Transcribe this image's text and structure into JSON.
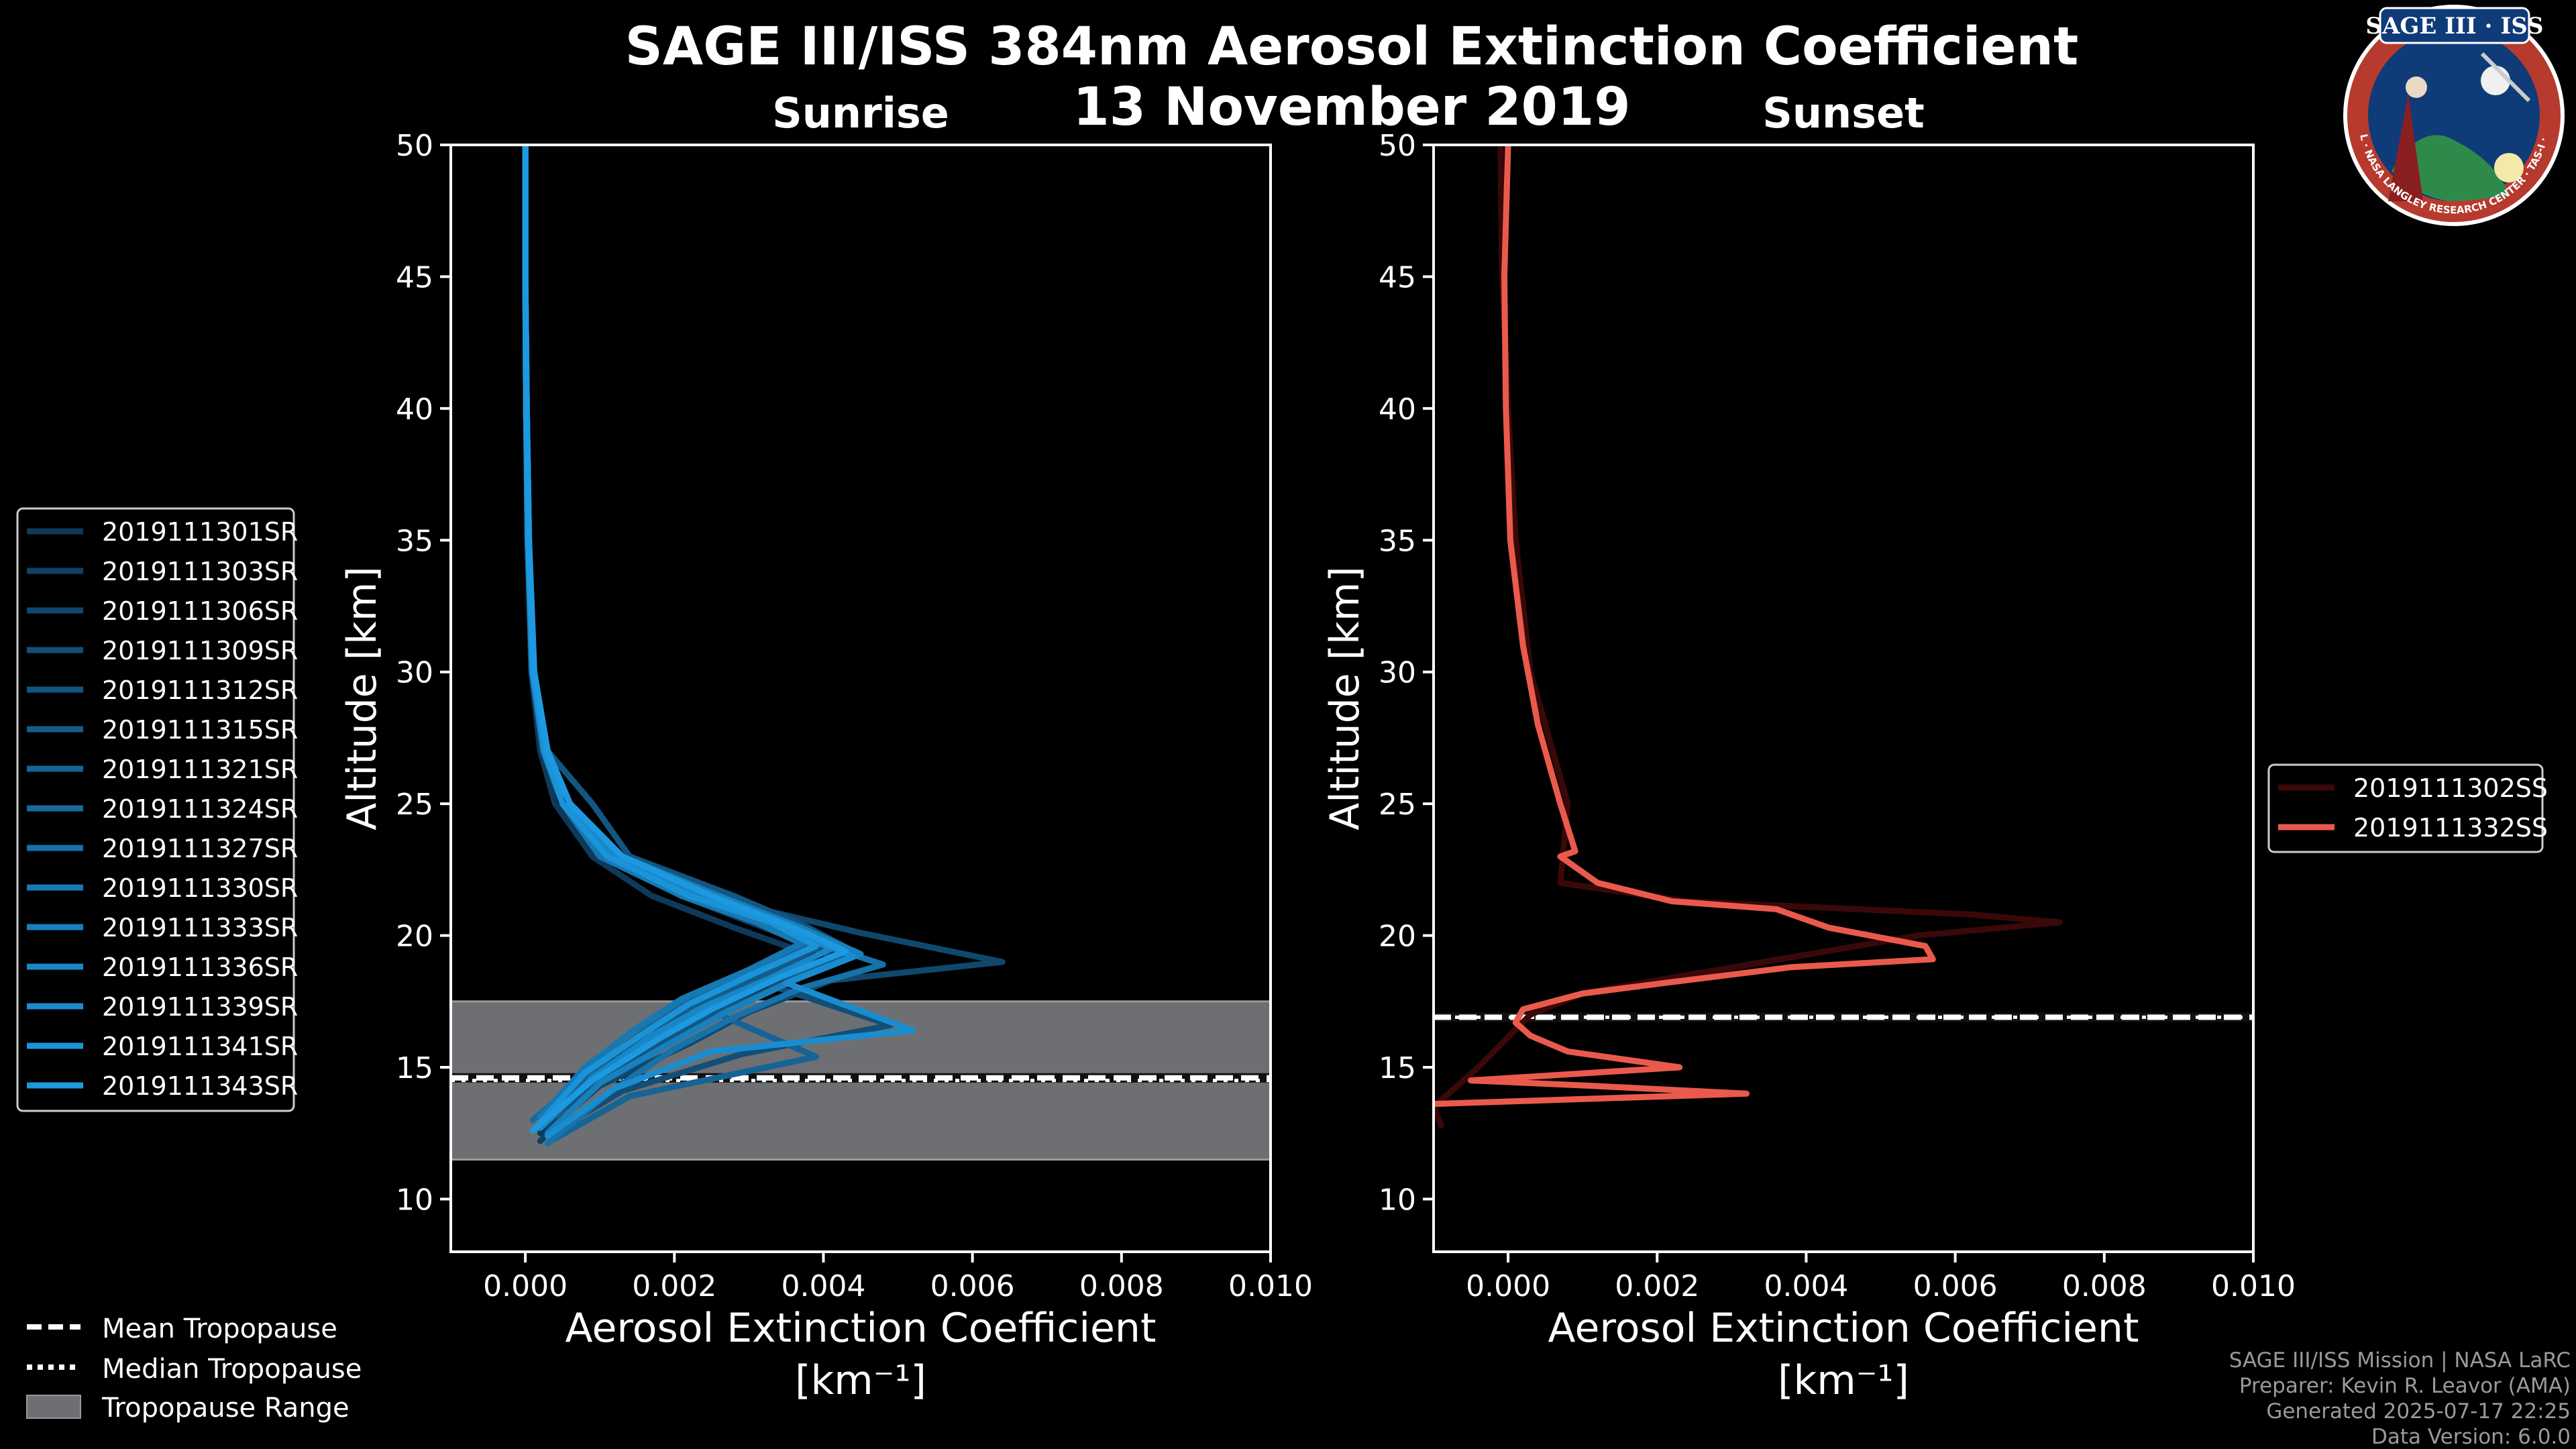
{
  "title_line1": "SAGE III/ISS 384nm Aerosol Extinction Coefficient",
  "title_line2": "13 November 2019",
  "logo": {
    "text_top": "SAGE III · ISS",
    "ring_text": "BALL · NASA LANGLEY RESEARCH CENTER · TAS-I · ESA"
  },
  "footer": {
    "line1": "SAGE III/ISS Mission | NASA LaRC",
    "line2": "Preparer: Kevin R. Leavor (AMA)",
    "line3": "Generated 2025-07-17 22:25",
    "line4": "Data Version: 6.0.0"
  },
  "bottom_legend": {
    "mean": "Mean Tropopause",
    "median": "Median Tropopause",
    "range": "Tropopause Range"
  },
  "colors": {
    "sunrise": "#1b8fd2",
    "sunset": "#ea5a4c",
    "tropopause_range": "#6d6f73"
  },
  "chart_data": [
    {
      "type": "line",
      "title": "Sunrise",
      "xlabel": "Aerosol Extinction Coefficient",
      "xlabel_units": "[km⁻¹]",
      "ylabel": "Altitude [km]",
      "xlim": [
        -0.001,
        0.01
      ],
      "ylim": [
        8,
        50
      ],
      "xticks": [
        0.0,
        0.002,
        0.004,
        0.006,
        0.008,
        0.01
      ],
      "xtick_labels": [
        "0.000",
        "0.002",
        "0.004",
        "0.006",
        "0.008",
        "0.010"
      ],
      "yticks": [
        10,
        15,
        20,
        25,
        30,
        35,
        40,
        45,
        50
      ],
      "tropopause": {
        "mean": 14.6,
        "median": 14.5,
        "range": [
          11.5,
          17.5
        ]
      },
      "series": [
        {
          "name": "2019111301SR",
          "color": "#0e3a5a",
          "x": [
            0.0,
            0.0,
            1e-05,
            3e-05,
            8e-05,
            0.0002,
            0.0004,
            0.0009,
            0.0017,
            0.0028,
            0.0037,
            0.0031,
            0.0022,
            0.0016,
            0.0008,
            0.0002
          ],
          "y": [
            50,
            45,
            40,
            35,
            30,
            27,
            25,
            23,
            21.5,
            20.3,
            19.4,
            18.4,
            17.2,
            16,
            14.5,
            12.5
          ]
        },
        {
          "name": "2019111303SR",
          "color": "#0f4163",
          "x": [
            0.0,
            0.0,
            1e-05,
            4e-05,
            0.0001,
            0.00025,
            0.0005,
            0.0011,
            0.0021,
            0.0033,
            0.0042,
            0.0034,
            0.0025,
            0.0018,
            0.0009,
            0.0002
          ],
          "y": [
            50,
            45,
            40,
            35,
            30,
            27,
            25,
            23,
            21.5,
            20.2,
            19.2,
            18.2,
            17,
            15.8,
            14.2,
            12.2
          ]
        },
        {
          "name": "2019111306SR",
          "color": "#10486d",
          "x": [
            0.0,
            0.0,
            2e-05,
            5e-05,
            0.00011,
            0.0003,
            0.0006,
            0.0012,
            0.0024,
            0.0045,
            0.0064,
            0.0041,
            0.003,
            0.0022,
            0.001,
            0.0003
          ],
          "y": [
            50,
            45,
            40,
            35,
            30,
            27,
            25,
            23,
            21.5,
            20.1,
            19.0,
            18.3,
            17.1,
            15.9,
            14.3,
            12.6
          ]
        },
        {
          "name": "2019111309SR",
          "color": "#114f77",
          "x": [
            0.0,
            0.0,
            1e-05,
            4e-05,
            0.0001,
            0.00027,
            0.0005,
            0.0012,
            0.0023,
            0.0034,
            0.0041,
            0.0033,
            0.0049,
            0.0029,
            0.0013,
            0.0003
          ],
          "y": [
            50,
            45,
            40,
            35,
            30,
            27,
            25,
            23,
            21.5,
            20.2,
            19.2,
            18.1,
            16.6,
            15.5,
            14.1,
            12.4
          ]
        },
        {
          "name": "2019111312SR",
          "color": "#125681",
          "x": [
            0.0,
            0.0,
            2e-05,
            5e-05,
            0.00012,
            0.0003,
            0.0009,
            0.0014,
            0.0028,
            0.0038,
            0.0044,
            0.0036,
            0.0027,
            0.0019,
            0.001,
            0.0002
          ],
          "y": [
            50,
            45,
            40,
            35,
            30,
            27,
            25,
            23,
            21.5,
            20.3,
            19.4,
            18.3,
            17.2,
            16.1,
            14.6,
            12.7
          ]
        },
        {
          "name": "2019111315SR",
          "color": "#135d8b",
          "x": [
            0.0,
            0.0,
            1e-05,
            3e-05,
            9e-05,
            0.00024,
            0.0005,
            0.0011,
            0.0022,
            0.0033,
            0.0039,
            0.0032,
            0.0023,
            0.0017,
            0.0008,
            0.0002
          ],
          "y": [
            50,
            45,
            40,
            35,
            30,
            27,
            25,
            23,
            21.5,
            20.4,
            19.5,
            18.5,
            17.3,
            16.2,
            14.7,
            12.8
          ]
        },
        {
          "name": "2019111321SR",
          "color": "#146495",
          "x": [
            0.0,
            0.0,
            2e-05,
            5e-05,
            0.00011,
            0.00028,
            0.0006,
            0.0013,
            0.0025,
            0.0036,
            0.0043,
            0.0035,
            0.0026,
            0.0039,
            0.0014,
            0.0004
          ],
          "y": [
            50,
            45,
            40,
            35,
            30,
            27,
            25,
            23,
            21.5,
            20.2,
            19.3,
            18.2,
            17.0,
            15.4,
            13.9,
            12.3
          ]
        },
        {
          "name": "2019111324SR",
          "color": "#156b9f",
          "x": [
            0.0,
            0.0,
            1e-05,
            4e-05,
            0.0001,
            0.00026,
            0.0005,
            0.0012,
            0.0022,
            0.0032,
            0.0038,
            0.0031,
            0.0022,
            0.0016,
            0.0009,
            0.0001
          ],
          "y": [
            50,
            45,
            40,
            35,
            30,
            27,
            25,
            23,
            21.5,
            20.5,
            19.6,
            18.6,
            17.5,
            16.4,
            14.9,
            13.0
          ]
        },
        {
          "name": "2019111327SR",
          "color": "#1672a9",
          "x": [
            0.0,
            0.0,
            2e-05,
            4e-05,
            0.0001,
            0.0003,
            0.0006,
            0.0012,
            0.0024,
            0.0035,
            0.0048,
            0.0037,
            0.0028,
            0.002,
            0.0011,
            0.0003
          ],
          "y": [
            50,
            45,
            40,
            35,
            30,
            27,
            25,
            23,
            21.5,
            20.1,
            18.9,
            18.0,
            16.9,
            15.7,
            14.0,
            12.1
          ]
        },
        {
          "name": "2019111330SR",
          "color": "#1779b3",
          "x": [
            0.0,
            0.0,
            1e-05,
            3e-05,
            9e-05,
            0.00024,
            0.0005,
            0.001,
            0.0021,
            0.0031,
            0.0037,
            0.003,
            0.0021,
            0.0015,
            0.0008,
            0.0002
          ],
          "y": [
            50,
            45,
            40,
            35,
            30,
            27,
            25,
            23,
            21.5,
            20.5,
            19.7,
            18.7,
            17.6,
            16.5,
            15.0,
            13.1
          ]
        },
        {
          "name": "2019111333SR",
          "color": "#1880bd",
          "x": [
            0.0,
            0.0,
            2e-05,
            5e-05,
            0.00012,
            0.0003,
            0.0006,
            0.0013,
            0.0026,
            0.0037,
            0.0045,
            0.0036,
            0.0027,
            0.002,
            0.001,
            0.0003
          ],
          "y": [
            50,
            45,
            40,
            35,
            30,
            27,
            25,
            23,
            21.5,
            20.3,
            19.3,
            18.3,
            17.1,
            16.0,
            14.4,
            12.5
          ]
        },
        {
          "name": "2019111336SR",
          "color": "#1987c7",
          "x": [
            0.0,
            0.0,
            1e-05,
            4e-05,
            0.0001,
            0.00027,
            0.0005,
            0.0012,
            0.0023,
            0.0034,
            0.0041,
            0.0033,
            0.0024,
            0.0017,
            0.0009,
            0.0002
          ],
          "y": [
            50,
            45,
            40,
            35,
            30,
            27,
            25,
            23,
            21.5,
            20.4,
            19.5,
            18.4,
            17.3,
            16.2,
            14.6,
            12.7
          ]
        },
        {
          "name": "2019111339SR",
          "color": "#1a8dd0",
          "x": [
            0.0,
            0.0,
            2e-05,
            5e-05,
            0.00011,
            0.00029,
            0.0006,
            0.0013,
            0.0025,
            0.0036,
            0.0044,
            0.0035,
            0.0052,
            0.0025,
            0.0012,
            0.0003
          ],
          "y": [
            50,
            45,
            40,
            35,
            30,
            27,
            25,
            23,
            21.5,
            20.2,
            19.2,
            18.2,
            16.4,
            15.6,
            14.2,
            12.4
          ]
        },
        {
          "name": "2019111341SR",
          "color": "#1b93d8",
          "x": [
            0.0,
            0.0,
            1e-05,
            4e-05,
            0.0001,
            0.00026,
            0.0005,
            0.0011,
            0.0022,
            0.0033,
            0.0039,
            0.0031,
            0.0022,
            0.0016,
            0.0008,
            0.0002
          ],
          "y": [
            50,
            45,
            40,
            35,
            30,
            27,
            25,
            23,
            21.5,
            20.5,
            19.6,
            18.6,
            17.4,
            16.3,
            14.8,
            12.9
          ]
        },
        {
          "name": "2019111343SR",
          "color": "#1c99e0",
          "x": [
            0.0,
            0.0,
            2e-05,
            5e-05,
            0.00012,
            0.0003,
            0.0006,
            0.0013,
            0.0025,
            0.0036,
            0.0043,
            0.0034,
            0.0025,
            0.0018,
            0.0009,
            0.0001
          ],
          "y": [
            50,
            45,
            40,
            35,
            30,
            27,
            25,
            23,
            21.5,
            20.3,
            19.4,
            18.4,
            17.2,
            16.1,
            14.5,
            12.6
          ]
        }
      ]
    },
    {
      "type": "line",
      "title": "Sunset",
      "xlabel": "Aerosol Extinction Coefficient",
      "xlabel_units": "[km⁻¹]",
      "ylabel": "Altitude [km]",
      "xlim": [
        -0.001,
        0.01
      ],
      "ylim": [
        8,
        50
      ],
      "xticks": [
        0.0,
        0.002,
        0.004,
        0.006,
        0.008,
        0.01
      ],
      "xtick_labels": [
        "0.000",
        "0.002",
        "0.004",
        "0.006",
        "0.008",
        "0.010"
      ],
      "yticks": [
        10,
        15,
        20,
        25,
        30,
        35,
        40,
        45,
        50
      ],
      "tropopause": {
        "mean": 16.9,
        "median": 16.9,
        "range": [
          16.8,
          17.0
        ]
      },
      "series": [
        {
          "name": "2019111302SS",
          "color": "#3a0808",
          "x": [
            -0.0001,
            -8e-05,
            0.0,
            0.0001,
            0.0003,
            0.0006,
            0.0008,
            0.0007,
            0.0024,
            0.0062,
            0.0074,
            0.0055,
            0.0022,
            0.001,
            0.0003,
            -0.0004,
            -0.001,
            -0.0009
          ],
          "y": [
            50,
            45,
            40,
            35,
            30,
            27,
            25,
            22,
            21.3,
            20.8,
            20.5,
            20.0,
            18.4,
            17.8,
            17.0,
            15.0,
            13.5,
            12.8
          ]
        },
        {
          "name": "2019111332SS",
          "color": "#ea5a4c",
          "x": [
            0.0,
            -5e-05,
            -3e-05,
            3e-05,
            0.0002,
            0.0004,
            0.0006,
            0.0007,
            0.0009,
            0.0007,
            0.0012,
            0.0022,
            0.0036,
            0.0043,
            0.0056,
            0.0057,
            0.0038,
            0.0021,
            0.001,
            0.0002,
            0.0001,
            0.0003,
            0.0008,
            0.0023,
            -0.0005,
            0.0011,
            0.0032,
            -0.0011
          ],
          "y": [
            50,
            45,
            40,
            35,
            31,
            28,
            26,
            25,
            23.2,
            23,
            22,
            21.3,
            21,
            20.3,
            19.6,
            19.1,
            18.8,
            18.2,
            17.8,
            17.2,
            16.7,
            16.2,
            15.6,
            15.0,
            14.5,
            14.3,
            14.0,
            13.6
          ]
        }
      ]
    }
  ]
}
